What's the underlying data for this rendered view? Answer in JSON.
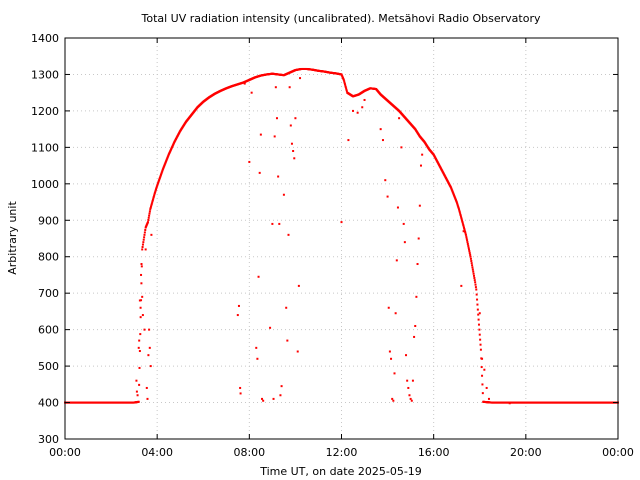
{
  "chart_data": {
    "type": "scatter",
    "title": "Total UV radiation intensity (uncalibrated). Metsähovi Radio Observatory",
    "xlabel": "Time UT, on date 2025-05-19",
    "ylabel": "Arbitrary unit",
    "xlim": [
      0,
      24
    ],
    "ylim": [
      300,
      1400
    ],
    "x_ticks": [
      {
        "value": 0,
        "label": "00:00"
      },
      {
        "value": 4,
        "label": "04:00"
      },
      {
        "value": 8,
        "label": "08:00"
      },
      {
        "value": 12,
        "label": "12:00"
      },
      {
        "value": 16,
        "label": "16:00"
      },
      {
        "value": 20,
        "label": "20:00"
      },
      {
        "value": 24,
        "label": "00:00"
      }
    ],
    "y_ticks": [
      300,
      400,
      500,
      600,
      700,
      800,
      900,
      1000,
      1100,
      1200,
      1300,
      1400
    ],
    "grid": true,
    "marker_color": "#ff0000",
    "series": [
      {
        "main_curve_hours_values": [
          [
            0.0,
            400
          ],
          [
            1.0,
            400
          ],
          [
            2.0,
            400
          ],
          [
            3.0,
            400
          ],
          [
            3.2,
            402
          ],
          [
            3.35,
            820
          ],
          [
            3.5,
            880
          ],
          [
            3.6,
            895
          ],
          [
            3.7,
            930
          ],
          [
            3.9,
            975
          ],
          [
            4.0,
            995
          ],
          [
            4.25,
            1040
          ],
          [
            4.5,
            1080
          ],
          [
            4.75,
            1115
          ],
          [
            5.0,
            1145
          ],
          [
            5.25,
            1170
          ],
          [
            5.5,
            1190
          ],
          [
            5.75,
            1210
          ],
          [
            6.0,
            1225
          ],
          [
            6.25,
            1237
          ],
          [
            6.5,
            1247
          ],
          [
            6.75,
            1255
          ],
          [
            7.0,
            1262
          ],
          [
            7.25,
            1268
          ],
          [
            7.5,
            1273
          ],
          [
            7.75,
            1278
          ],
          [
            8.0,
            1285
          ],
          [
            8.25,
            1292
          ],
          [
            8.5,
            1297
          ],
          [
            8.75,
            1300
          ],
          [
            9.0,
            1302
          ],
          [
            9.25,
            1300
          ],
          [
            9.5,
            1298
          ],
          [
            9.75,
            1305
          ],
          [
            10.0,
            1312
          ],
          [
            10.25,
            1315
          ],
          [
            10.5,
            1315
          ],
          [
            10.75,
            1313
          ],
          [
            11.0,
            1310
          ],
          [
            11.25,
            1308
          ],
          [
            11.5,
            1305
          ],
          [
            11.75,
            1303
          ],
          [
            12.0,
            1300
          ],
          [
            12.1,
            1285
          ],
          [
            12.25,
            1250
          ],
          [
            12.5,
            1240
          ],
          [
            12.75,
            1245
          ],
          [
            13.0,
            1255
          ],
          [
            13.25,
            1262
          ],
          [
            13.5,
            1260
          ],
          [
            13.7,
            1245
          ],
          [
            14.5,
            1200
          ],
          [
            15.2,
            1150
          ],
          [
            15.4,
            1130
          ],
          [
            15.6,
            1115
          ],
          [
            15.8,
            1095
          ],
          [
            16.0,
            1080
          ],
          [
            16.25,
            1050
          ],
          [
            16.5,
            1020
          ],
          [
            16.75,
            990
          ],
          [
            17.0,
            950
          ],
          [
            17.1,
            930
          ],
          [
            17.25,
            895
          ],
          [
            17.4,
            860
          ],
          [
            17.5,
            830
          ],
          [
            17.6,
            800
          ],
          [
            17.7,
            765
          ],
          [
            17.8,
            730
          ],
          [
            17.85,
            710
          ],
          [
            18.05,
            545
          ],
          [
            18.15,
            402
          ],
          [
            18.5,
            400
          ],
          [
            19.0,
            400
          ],
          [
            20.0,
            400
          ],
          [
            21.0,
            400
          ],
          [
            22.0,
            400
          ],
          [
            23.0,
            400
          ],
          [
            24.0,
            400
          ]
        ]
      },
      {
        "outlier_points": [
          [
            3.1,
            460
          ],
          [
            3.12,
            430
          ],
          [
            3.15,
            420
          ],
          [
            3.2,
            550
          ],
          [
            3.22,
            570
          ],
          [
            3.25,
            680
          ],
          [
            3.28,
            660
          ],
          [
            3.3,
            750
          ],
          [
            3.32,
            780
          ],
          [
            3.35,
            690
          ],
          [
            3.38,
            640
          ],
          [
            3.45,
            600
          ],
          [
            3.5,
            820
          ],
          [
            3.55,
            440
          ],
          [
            3.58,
            410
          ],
          [
            3.62,
            530
          ],
          [
            3.65,
            600
          ],
          [
            3.68,
            550
          ],
          [
            3.72,
            500
          ],
          [
            3.75,
            860
          ],
          [
            7.5,
            640
          ],
          [
            7.55,
            665
          ],
          [
            7.6,
            440
          ],
          [
            7.62,
            425
          ],
          [
            7.8,
            1275
          ],
          [
            8.0,
            1060
          ],
          [
            8.1,
            1250
          ],
          [
            8.3,
            550
          ],
          [
            8.35,
            520
          ],
          [
            8.4,
            745
          ],
          [
            8.45,
            1030
          ],
          [
            8.5,
            1135
          ],
          [
            8.55,
            410
          ],
          [
            8.6,
            405
          ],
          [
            8.9,
            605
          ],
          [
            9.0,
            890
          ],
          [
            9.05,
            410
          ],
          [
            9.1,
            1130
          ],
          [
            9.15,
            1265
          ],
          [
            9.2,
            1180
          ],
          [
            9.25,
            1020
          ],
          [
            9.3,
            890
          ],
          [
            9.35,
            420
          ],
          [
            9.4,
            445
          ],
          [
            9.5,
            970
          ],
          [
            9.6,
            660
          ],
          [
            9.65,
            570
          ],
          [
            9.7,
            860
          ],
          [
            9.75,
            1265
          ],
          [
            9.8,
            1160
          ],
          [
            9.85,
            1110
          ],
          [
            9.9,
            1090
          ],
          [
            9.95,
            1070
          ],
          [
            10.0,
            1180
          ],
          [
            10.1,
            540
          ],
          [
            10.15,
            720
          ],
          [
            10.2,
            1290
          ],
          [
            12.0,
            895
          ],
          [
            12.3,
            1120
          ],
          [
            12.5,
            1200
          ],
          [
            12.7,
            1195
          ],
          [
            12.9,
            1210
          ],
          [
            13.0,
            1230
          ],
          [
            13.7,
            1150
          ],
          [
            13.8,
            1120
          ],
          [
            13.9,
            1010
          ],
          [
            14.0,
            965
          ],
          [
            14.05,
            660
          ],
          [
            14.1,
            540
          ],
          [
            14.15,
            520
          ],
          [
            14.2,
            410
          ],
          [
            14.25,
            405
          ],
          [
            14.3,
            480
          ],
          [
            14.35,
            645
          ],
          [
            14.4,
            790
          ],
          [
            14.45,
            935
          ],
          [
            14.5,
            1180
          ],
          [
            14.6,
            1100
          ],
          [
            14.7,
            890
          ],
          [
            14.75,
            840
          ],
          [
            14.8,
            530
          ],
          [
            14.85,
            460
          ],
          [
            14.9,
            440
          ],
          [
            14.95,
            420
          ],
          [
            15.0,
            410
          ],
          [
            15.05,
            405
          ],
          [
            15.1,
            460
          ],
          [
            15.15,
            580
          ],
          [
            15.2,
            610
          ],
          [
            15.25,
            690
          ],
          [
            15.3,
            780
          ],
          [
            15.35,
            850
          ],
          [
            15.4,
            940
          ],
          [
            15.45,
            1050
          ],
          [
            15.5,
            1080
          ],
          [
            17.2,
            720
          ],
          [
            17.3,
            870
          ],
          [
            18.0,
            645
          ],
          [
            18.1,
            520
          ],
          [
            18.2,
            490
          ],
          [
            18.3,
            440
          ],
          [
            18.4,
            410
          ],
          [
            19.3,
            398
          ]
        ]
      }
    ]
  }
}
